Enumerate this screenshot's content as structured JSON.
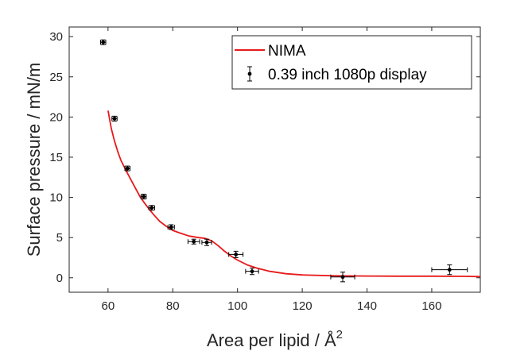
{
  "chart_data": {
    "type": "scatter",
    "xlabel": "Area per lipid / Å",
    "xlabel_superscript": "2",
    "ylabel": "Surface pressure / mN/m",
    "xlim": [
      48,
      175
    ],
    "ylim": [
      -1.8,
      31.2
    ],
    "x_ticks": [
      60,
      80,
      100,
      120,
      140,
      160
    ],
    "y_ticks": [
      0,
      5,
      10,
      15,
      20,
      25,
      30
    ],
    "grid": false,
    "legend_position": "top-right",
    "series": [
      {
        "name": "NIMA",
        "kind": "line",
        "color": "#e8191b",
        "points": [
          [
            60.0,
            20.8
          ],
          [
            61.0,
            18.6
          ],
          [
            62.0,
            17.0
          ],
          [
            63.0,
            15.7
          ],
          [
            64.0,
            14.6
          ],
          [
            66.0,
            13.0
          ],
          [
            68.0,
            11.5
          ],
          [
            70.0,
            10.0
          ],
          [
            72.0,
            8.9
          ],
          [
            74.0,
            7.9
          ],
          [
            76.0,
            7.0
          ],
          [
            78.0,
            6.4
          ],
          [
            80.0,
            5.9
          ],
          [
            82.0,
            5.6
          ],
          [
            85.0,
            5.2
          ],
          [
            88.0,
            5.0
          ],
          [
            90.0,
            4.9
          ],
          [
            92.0,
            4.6
          ],
          [
            94.0,
            4.0
          ],
          [
            96.0,
            3.3
          ],
          [
            98.0,
            2.7
          ],
          [
            100.0,
            2.2
          ],
          [
            103.0,
            1.6
          ],
          [
            106.0,
            1.2
          ],
          [
            110.0,
            0.8
          ],
          [
            115.0,
            0.5
          ],
          [
            120.0,
            0.35
          ],
          [
            130.0,
            0.25
          ],
          [
            140.0,
            0.22
          ],
          [
            150.0,
            0.2
          ],
          [
            160.0,
            0.2
          ],
          [
            170.0,
            0.18
          ],
          [
            175.0,
            0.15
          ]
        ]
      },
      {
        "name": "0.39 inch 1080p display",
        "kind": "errorbar",
        "color": "#000000",
        "points": [
          {
            "x": 58.5,
            "y": 29.3,
            "xerr": 0.8,
            "yerr": 0.3
          },
          {
            "x": 62.0,
            "y": 19.8,
            "xerr": 0.8,
            "yerr": 0.3
          },
          {
            "x": 66.0,
            "y": 13.6,
            "xerr": 0.8,
            "yerr": 0.3
          },
          {
            "x": 71.0,
            "y": 10.1,
            "xerr": 0.8,
            "yerr": 0.3
          },
          {
            "x": 73.5,
            "y": 8.7,
            "xerr": 0.9,
            "yerr": 0.3
          },
          {
            "x": 79.5,
            "y": 6.3,
            "xerr": 1.0,
            "yerr": 0.3
          },
          {
            "x": 86.5,
            "y": 4.5,
            "xerr": 1.8,
            "yerr": 0.3
          },
          {
            "x": 90.5,
            "y": 4.4,
            "xerr": 1.5,
            "yerr": 0.4
          },
          {
            "x": 99.5,
            "y": 2.9,
            "xerr": 2.2,
            "yerr": 0.4
          },
          {
            "x": 104.5,
            "y": 0.8,
            "xerr": 2.0,
            "yerr": 0.4
          },
          {
            "x": 132.5,
            "y": 0.1,
            "xerr": 3.7,
            "yerr": 0.6
          },
          {
            "x": 165.5,
            "y": 1.0,
            "xerr": 5.5,
            "yerr": 0.6
          }
        ]
      }
    ]
  }
}
